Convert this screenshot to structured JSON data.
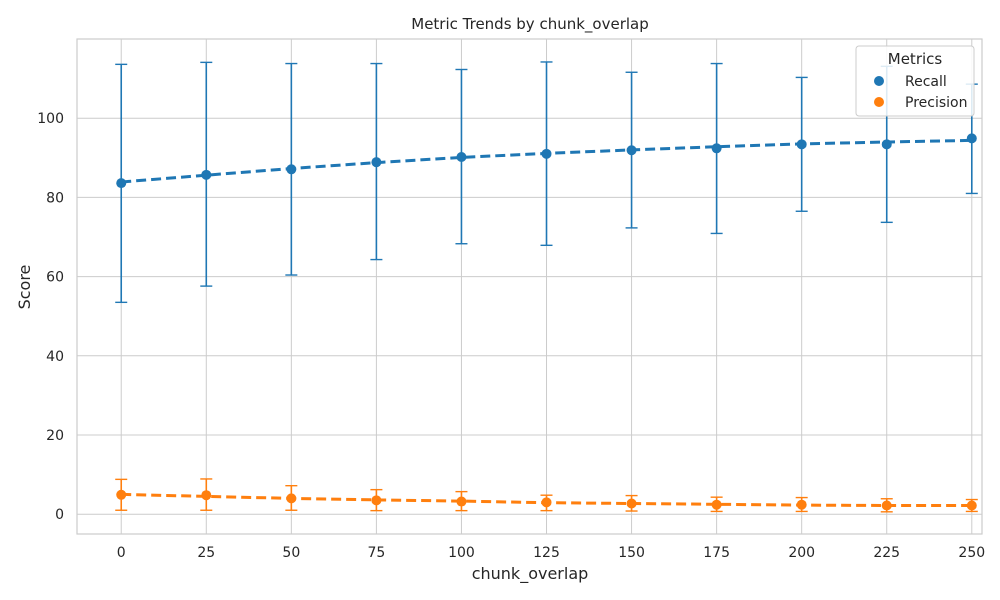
{
  "chart_data": {
    "type": "line",
    "title": "Metric Trends by chunk_overlap",
    "xlabel": "chunk_overlap",
    "ylabel": "Score",
    "x": [
      0,
      25,
      50,
      75,
      100,
      125,
      150,
      175,
      200,
      225,
      250
    ],
    "xlim": [
      -13,
      253
    ],
    "ylim": [
      -5,
      120
    ],
    "yticks": [
      0,
      20,
      40,
      60,
      80,
      100
    ],
    "grid": true,
    "legend": {
      "title": "Metrics",
      "placement": "top-right",
      "entries": [
        "Recall",
        "Precision"
      ]
    },
    "series": [
      {
        "name": "Recall",
        "color": "#1f77b4",
        "values": [
          83.6,
          85.7,
          87.1,
          88.9,
          90.2,
          91.0,
          91.9,
          92.4,
          93.4,
          93.4,
          94.9
        ],
        "trend": [
          83.9,
          85.6,
          87.3,
          88.8,
          90.1,
          91.1,
          92.0,
          92.8,
          93.5,
          94.0,
          94.4
        ],
        "err_low": [
          53.5,
          57.6,
          60.4,
          64.3,
          68.3,
          67.9,
          72.3,
          70.9,
          76.5,
          73.7,
          81.0
        ],
        "err_high": [
          113.6,
          114.1,
          113.8,
          113.8,
          112.3,
          114.2,
          111.6,
          113.8,
          110.3,
          113.1,
          108.6
        ]
      },
      {
        "name": "Precision",
        "color": "#ff7f0e",
        "values": [
          4.9,
          4.8,
          4.0,
          3.5,
          3.2,
          3.0,
          2.7,
          2.4,
          2.4,
          2.2,
          2.2
        ],
        "trend": [
          5.0,
          4.5,
          4.0,
          3.6,
          3.3,
          2.9,
          2.7,
          2.5,
          2.3,
          2.2,
          2.2
        ],
        "err_low": [
          1.0,
          1.0,
          1.0,
          0.9,
          0.9,
          0.9,
          0.8,
          0.7,
          0.7,
          0.6,
          0.7
        ],
        "err_high": [
          8.8,
          8.9,
          7.2,
          6.2,
          5.7,
          4.8,
          4.7,
          4.3,
          4.2,
          3.9,
          3.7
        ]
      }
    ]
  }
}
